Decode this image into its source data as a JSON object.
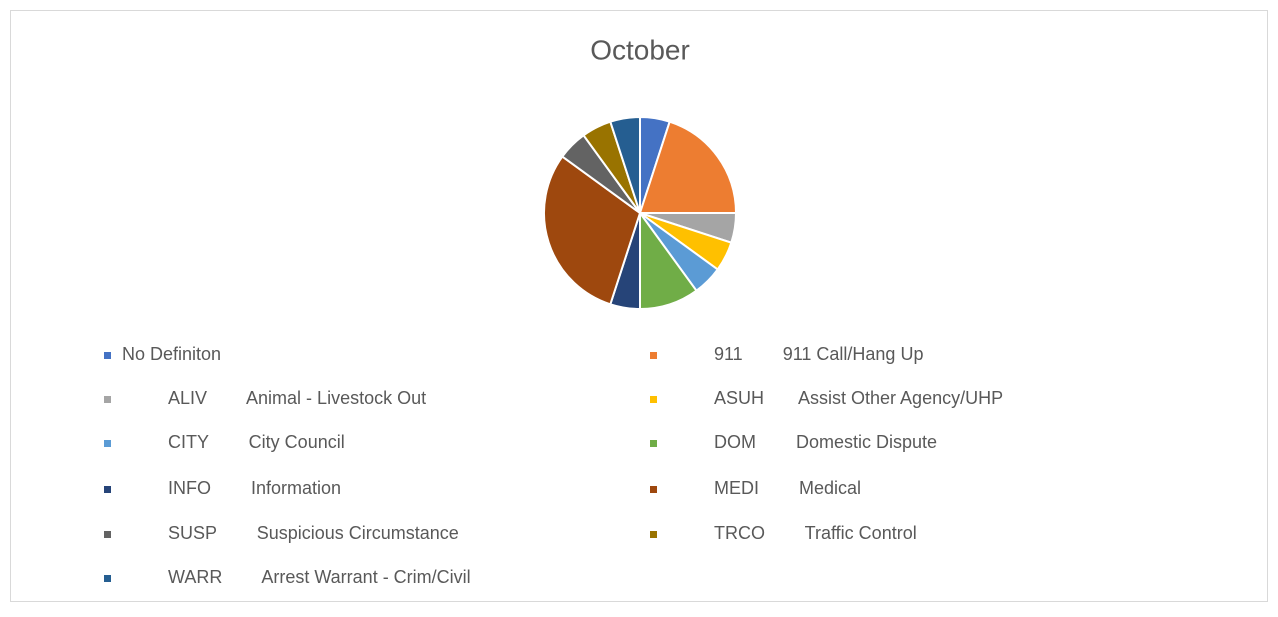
{
  "chart_data": {
    "type": "pie",
    "title": "October",
    "categories": [
      "No Definiton",
      "911        911 Call/Hang Up",
      "ALIV        Animal - Livestock Out",
      "ASUH       Assist Other Agency/UHP",
      "CITY        City Council",
      "DOM        Domestic Dispute",
      "INFO        Information",
      "MEDI        Medical",
      "SUSP        Suspicious Circumstance",
      "TRCO        Traffic Control",
      "WARR        Arrest Warrant - Crim/Civil"
    ],
    "values": [
      1,
      4,
      1,
      1,
      1,
      2,
      1,
      6,
      1,
      1,
      1
    ],
    "colors": [
      "#4472c4",
      "#ed7d31",
      "#a5a5a5",
      "#ffc000",
      "#5b9bd5",
      "#70ad47",
      "#264478",
      "#9e480e",
      "#636363",
      "#997300",
      "#255e91"
    ],
    "legend": "bottom"
  }
}
